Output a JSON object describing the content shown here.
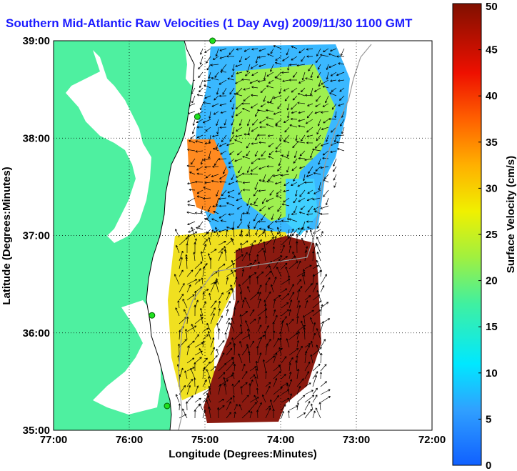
{
  "title": "Southern Mid-Atlantic Raw Velocities (1 Day Avg) 2009/11/30 1100 GMT",
  "map": {
    "xlabel": "Longitude (Degrees:Minutes)",
    "ylabel": "Latitude (Degrees:Minutes)",
    "x_ticks": [
      "77:00",
      "76:00",
      "75:00",
      "74:00",
      "73:00",
      "72:00"
    ],
    "y_ticks": [
      "39:00",
      "38:00",
      "37:00",
      "36:00",
      "35:00"
    ],
    "xlim": [
      -77,
      -72
    ],
    "ylim": [
      35,
      39
    ],
    "grid": "dotted",
    "land_color": "#4ef0a0",
    "vector_color": "#000000"
  },
  "colorbar": {
    "label": "Surface Velocity (cm/s)",
    "ticks": [
      "0",
      "5",
      "10",
      "15",
      "20",
      "25",
      "30",
      "35",
      "40",
      "45",
      "50"
    ],
    "range": [
      0,
      50
    ],
    "colormap": "jet"
  },
  "stations": [
    {
      "lon": -74.9,
      "lat": 39.0
    },
    {
      "lon": -75.1,
      "lat": 38.22
    },
    {
      "lon": -75.7,
      "lat": 36.18
    },
    {
      "lon": -75.5,
      "lat": 35.25
    }
  ]
}
